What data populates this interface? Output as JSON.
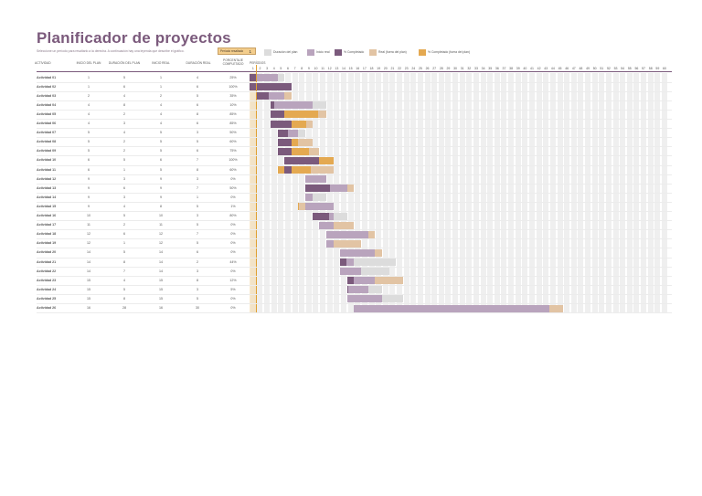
{
  "title": "Planificador de proyectos",
  "subtitle": "Seleccione un período para resaltarlo a la derecha. A continuación hay una leyenda que describe el gráfico.",
  "period_highlight": {
    "label": "Período resaltado",
    "value": "1"
  },
  "legend": [
    {
      "label": "Duración del plan",
      "color": "#dcdcdc"
    },
    {
      "label": "Inicio real",
      "color": "#b9a4bd"
    },
    {
      "label": "% Completado",
      "color": "#7b5a7c"
    },
    {
      "label": "Real (fuera del plan)",
      "color": "#e2c4a4"
    },
    {
      "label": "% Completado (fuera del plan)",
      "color": "#e4a951"
    }
  ],
  "columns": {
    "activity": "ACTIVIDAD",
    "plan_start": "INICIO DEL PLAN",
    "plan_duration": "DURACIÓN DEL PLAN",
    "actual_start": "INICIO REAL",
    "actual_duration": "DURACIÓN REAL",
    "percent_complete": "PORCENTAJE COMPLETADO",
    "periods": "PERÍODOS"
  },
  "periods": [
    "1",
    "2",
    "3",
    "4",
    "5",
    "6",
    "7",
    "8",
    "9",
    "10",
    "11",
    "12",
    "13",
    "14",
    "15",
    "16",
    "17",
    "18",
    "19",
    "20",
    "21",
    "22",
    "23",
    "24",
    "25",
    "26",
    "27",
    "28",
    "29",
    "30",
    "31",
    "32",
    "33",
    "34",
    "35",
    "36",
    "37",
    "38",
    "39",
    "40",
    "41",
    "42",
    "43",
    "44",
    "45",
    "46",
    "47",
    "48",
    "49",
    "50",
    "51",
    "52",
    "53",
    "54",
    "55",
    "56",
    "57",
    "58",
    "59",
    "60"
  ],
  "colors": {
    "plan": "#dcdcdc",
    "actual": "#b9a4bd",
    "complete": "#7b5a7c",
    "beyond": "#e2c4a4",
    "beyond_complete": "#e4a951",
    "header": "#7b5a7c"
  },
  "rows": [
    {
      "name": "Actividad 01",
      "ps": "1",
      "pd": "5",
      "as": "1",
      "ad": "4",
      "pct": "25%"
    },
    {
      "name": "Actividad 02",
      "ps": "1",
      "pd": "6",
      "as": "1",
      "ad": "6",
      "pct": "100%"
    },
    {
      "name": "Actividad 03",
      "ps": "2",
      "pd": "4",
      "as": "2",
      "ad": "5",
      "pct": "35%"
    },
    {
      "name": "Actividad 04",
      "ps": "4",
      "pd": "8",
      "as": "4",
      "ad": "6",
      "pct": "10%"
    },
    {
      "name": "Actividad 05",
      "ps": "4",
      "pd": "2",
      "as": "4",
      "ad": "8",
      "pct": "85%"
    },
    {
      "name": "Actividad 06",
      "ps": "4",
      "pd": "3",
      "as": "4",
      "ad": "6",
      "pct": "85%"
    },
    {
      "name": "Actividad 07",
      "ps": "5",
      "pd": "4",
      "as": "5",
      "ad": "3",
      "pct": "50%"
    },
    {
      "name": "Actividad 08",
      "ps": "5",
      "pd": "2",
      "as": "5",
      "ad": "5",
      "pct": "60%"
    },
    {
      "name": "Actividad 09",
      "ps": "5",
      "pd": "2",
      "as": "5",
      "ad": "6",
      "pct": "75%"
    },
    {
      "name": "Actividad 10",
      "ps": "6",
      "pd": "5",
      "as": "6",
      "ad": "7",
      "pct": "100%"
    },
    {
      "name": "Actividad 11",
      "ps": "6",
      "pd": "1",
      "as": "5",
      "ad": "8",
      "pct": "60%"
    },
    {
      "name": "Actividad 12",
      "ps": "9",
      "pd": "3",
      "as": "9",
      "ad": "3",
      "pct": "0%"
    },
    {
      "name": "Actividad 13",
      "ps": "9",
      "pd": "6",
      "as": "9",
      "ad": "7",
      "pct": "50%"
    },
    {
      "name": "Actividad 14",
      "ps": "9",
      "pd": "3",
      "as": "9",
      "ad": "1",
      "pct": "0%"
    },
    {
      "name": "Actividad 15",
      "ps": "9",
      "pd": "4",
      "as": "8",
      "ad": "5",
      "pct": "1%"
    },
    {
      "name": "Actividad 16",
      "ps": "10",
      "pd": "5",
      "as": "10",
      "ad": "3",
      "pct": "80%"
    },
    {
      "name": "Actividad 17",
      "ps": "11",
      "pd": "2",
      "as": "11",
      "ad": "5",
      "pct": "0%"
    },
    {
      "name": "Actividad 18",
      "ps": "12",
      "pd": "6",
      "as": "12",
      "ad": "7",
      "pct": "0%"
    },
    {
      "name": "Actividad 19",
      "ps": "12",
      "pd": "1",
      "as": "12",
      "ad": "5",
      "pct": "0%"
    },
    {
      "name": "Actividad 20",
      "ps": "14",
      "pd": "5",
      "as": "14",
      "ad": "6",
      "pct": "0%"
    },
    {
      "name": "Actividad 21",
      "ps": "14",
      "pd": "8",
      "as": "14",
      "ad": "2",
      "pct": "44%"
    },
    {
      "name": "Actividad 22",
      "ps": "14",
      "pd": "7",
      "as": "14",
      "ad": "3",
      "pct": "0%"
    },
    {
      "name": "Actividad 23",
      "ps": "15",
      "pd": "4",
      "as": "15",
      "ad": "8",
      "pct": "12%"
    },
    {
      "name": "Actividad 24",
      "ps": "15",
      "pd": "5",
      "as": "15",
      "ad": "3",
      "pct": "5%"
    },
    {
      "name": "Actividad 25",
      "ps": "15",
      "pd": "8",
      "as": "15",
      "ad": "5",
      "pct": "0%"
    },
    {
      "name": "Actividad 26",
      "ps": "16",
      "pd": "28",
      "as": "16",
      "ad": "30",
      "pct": "0%"
    }
  ]
}
